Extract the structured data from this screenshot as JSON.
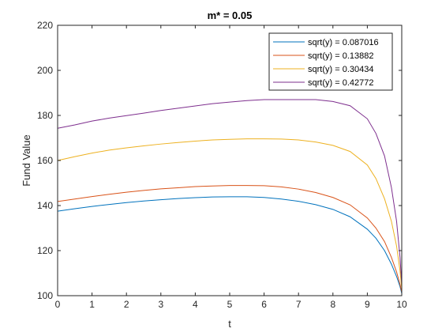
{
  "chart_data": {
    "type": "line",
    "title": "m* = 0.05",
    "xlabel": "t",
    "ylabel": "Fund Value",
    "xlim": [
      0,
      10
    ],
    "ylim": [
      100,
      220
    ],
    "xticks": [
      0,
      1,
      2,
      3,
      4,
      5,
      6,
      7,
      8,
      9,
      10
    ],
    "yticks": [
      100,
      120,
      140,
      160,
      180,
      200,
      220
    ],
    "grid": false,
    "legend_position": "top-right",
    "series": [
      {
        "name": "sqrt(y) = 0.087016",
        "color": "#0072BD",
        "x": [
          0,
          0.5,
          1,
          1.5,
          2,
          2.5,
          3,
          3.5,
          4,
          4.5,
          5,
          5.5,
          6,
          6.5,
          7,
          7.5,
          8,
          8.5,
          9,
          9.25,
          9.5,
          9.7,
          9.85,
          9.95,
          10
        ],
        "y": [
          137.5,
          138.6,
          139.6,
          140.5,
          141.3,
          142.0,
          142.6,
          143.1,
          143.5,
          143.8,
          143.9,
          143.9,
          143.6,
          142.9,
          141.9,
          140.4,
          138.3,
          135.0,
          129.5,
          125.5,
          120.0,
          114.0,
          108.5,
          104.0,
          101.0
        ]
      },
      {
        "name": "sqrt(y) = 0.13882",
        "color": "#D95319",
        "x": [
          0,
          0.5,
          1,
          1.5,
          2,
          2.5,
          3,
          3.5,
          4,
          4.5,
          5,
          5.5,
          6,
          6.5,
          7,
          7.5,
          8,
          8.5,
          9,
          9.25,
          9.5,
          9.7,
          9.85,
          9.95,
          10
        ],
        "y": [
          141.8,
          142.9,
          144.0,
          145.0,
          145.9,
          146.7,
          147.4,
          147.9,
          148.4,
          148.7,
          148.9,
          148.9,
          148.8,
          148.3,
          147.3,
          145.8,
          143.6,
          140.3,
          134.5,
          130.0,
          124.0,
          117.0,
          110.5,
          105.0,
          101.5
        ]
      },
      {
        "name": "sqrt(y) = 0.30434",
        "color": "#EDB120",
        "x": [
          0,
          0.5,
          1,
          1.5,
          2,
          2.5,
          3,
          3.5,
          4,
          4.5,
          5,
          5.5,
          6,
          6.5,
          7,
          7.5,
          8,
          8.5,
          9,
          9.25,
          9.5,
          9.7,
          9.85,
          9.95,
          10
        ],
        "y": [
          160.0,
          161.7,
          163.3,
          164.6,
          165.6,
          166.5,
          167.3,
          168.0,
          168.6,
          169.1,
          169.4,
          169.6,
          169.6,
          169.5,
          169.1,
          168.2,
          166.7,
          164.0,
          158.0,
          152.0,
          143.0,
          133.0,
          122.0,
          111.0,
          103.0
        ]
      },
      {
        "name": "sqrt(y) = 0.42772",
        "color": "#7E2F8E",
        "x": [
          0,
          0.5,
          1,
          1.5,
          2,
          2.5,
          3,
          3.5,
          4,
          4.5,
          5,
          5.5,
          6,
          6.5,
          7,
          7.5,
          8,
          8.5,
          9,
          9.25,
          9.5,
          9.7,
          9.85,
          9.95,
          10
        ],
        "y": [
          174.3,
          175.8,
          177.5,
          178.8,
          179.9,
          181.0,
          182.2,
          183.2,
          184.2,
          185.2,
          185.9,
          186.6,
          187.0,
          187.0,
          187.0,
          187.0,
          186.2,
          184.3,
          178.5,
          172.0,
          162.0,
          148.0,
          133.0,
          117.0,
          105.0
        ]
      }
    ]
  }
}
